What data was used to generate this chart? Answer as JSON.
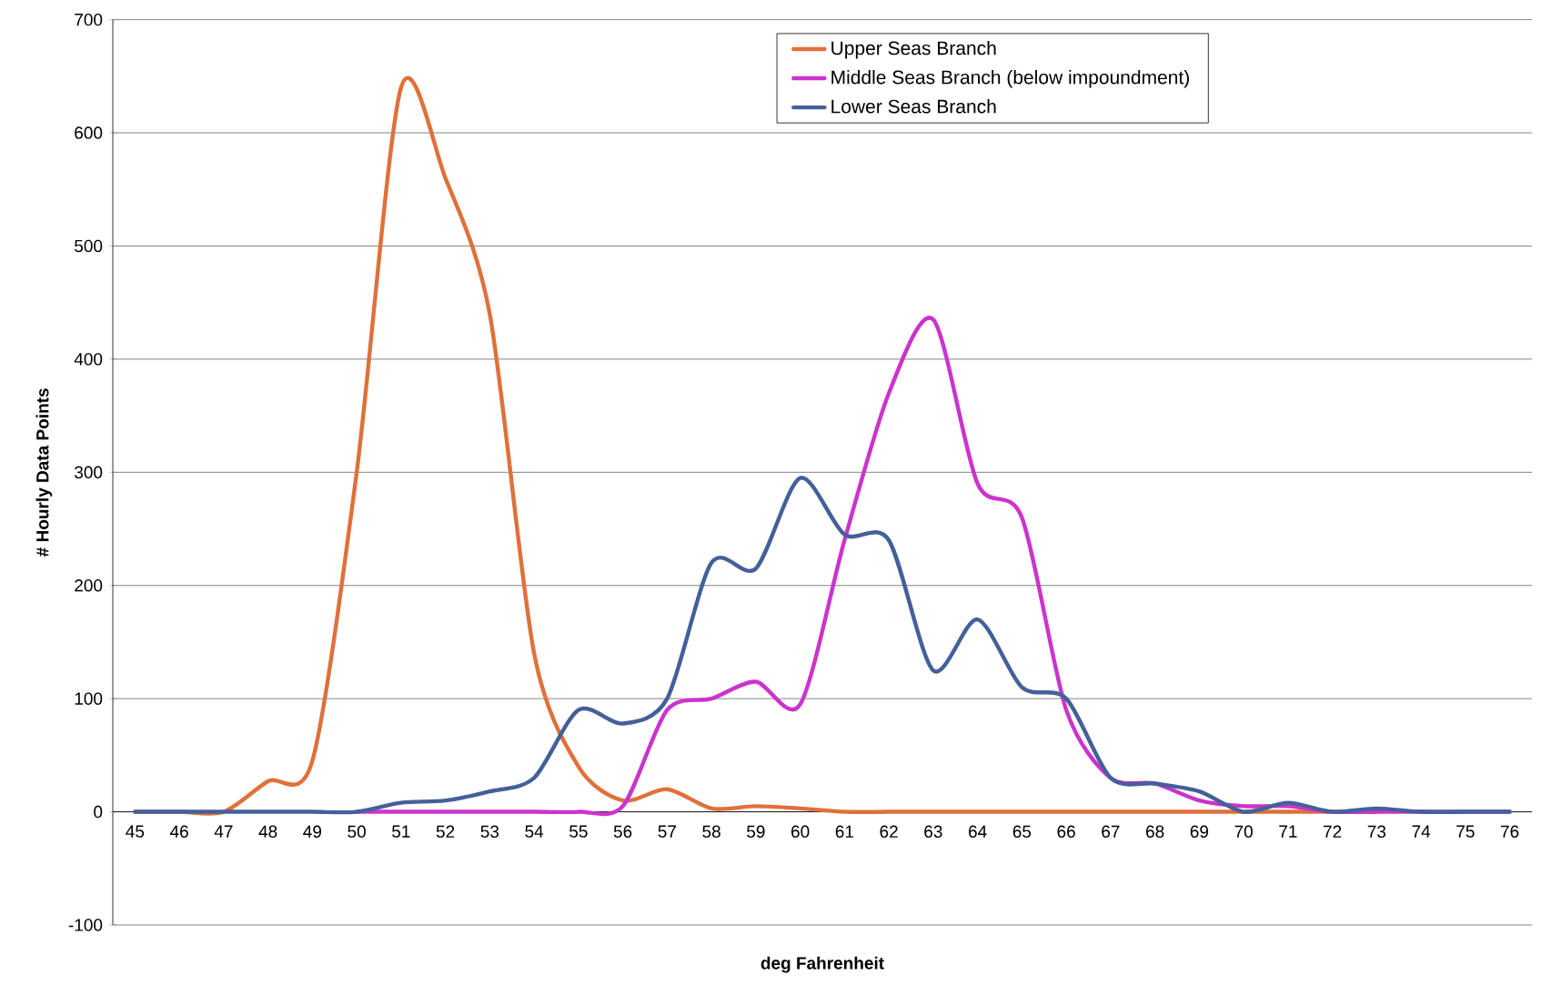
{
  "chart_data": {
    "type": "line",
    "xlabel": "deg Fahrenheit",
    "ylabel": "# Hourly Data Points",
    "categories": [
      "45",
      "46",
      "47",
      "48",
      "49",
      "50",
      "51",
      "52",
      "53",
      "54",
      "55",
      "56",
      "57",
      "58",
      "59",
      "60",
      "61",
      "62",
      "63",
      "64",
      "65",
      "66",
      "67",
      "68",
      "69",
      "70",
      "71",
      "72",
      "73",
      "74",
      "75",
      "76"
    ],
    "series": [
      {
        "name": "Upper Seas Branch",
        "color": "#e0703a",
        "values": [
          0,
          0,
          0,
          27,
          45,
          300,
          640,
          560,
          440,
          140,
          40,
          10,
          20,
          3,
          5,
          3,
          0,
          0,
          0,
          0,
          0,
          0,
          0,
          0,
          0,
          0,
          0,
          0,
          0,
          null,
          null,
          null
        ]
      },
      {
        "name": "Middle Seas Branch (below impoundment)",
        "color": "#cc33cc",
        "values": [
          null,
          null,
          null,
          null,
          null,
          0,
          0,
          0,
          0,
          0,
          0,
          5,
          90,
          100,
          115,
          95,
          240,
          370,
          435,
          290,
          260,
          90,
          30,
          25,
          10,
          5,
          5,
          0,
          0,
          0,
          0,
          0
        ]
      },
      {
        "name": "Lower Seas Branch",
        "color": "#44609a",
        "values": [
          0,
          0,
          0,
          0,
          0,
          0,
          8,
          10,
          18,
          30,
          90,
          78,
          100,
          220,
          215,
          295,
          245,
          240,
          125,
          170,
          110,
          100,
          30,
          25,
          18,
          0,
          8,
          0,
          3,
          0,
          0,
          0
        ]
      }
    ],
    "ylim": [
      -100,
      700
    ],
    "yticks": [
      -100,
      0,
      100,
      200,
      300,
      400,
      500,
      600,
      700
    ],
    "grid": "y",
    "legend": "top",
    "marker": "none",
    "line_style": "solid"
  }
}
